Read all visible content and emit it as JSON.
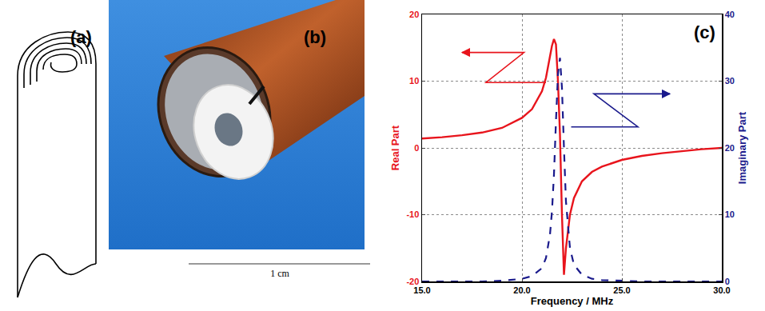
{
  "panels": {
    "a": {
      "label": "(a)"
    },
    "b": {
      "label": "(b)",
      "scale_bar": "1 cm"
    }
  },
  "chart_data": {
    "type": "line",
    "title": "(c)",
    "x_label": "Frequency / MHz",
    "y_label": "Real Part",
    "y2_label": "Imaginary Part",
    "x": [
      15,
      16,
      17,
      18,
      19,
      20,
      20.5,
      21,
      21.2,
      21.4,
      21.5,
      21.6,
      21.7,
      21.8,
      21.9,
      22.0,
      22.1,
      22.2,
      22.4,
      22.6,
      23,
      23.5,
      24,
      25,
      26,
      27,
      28,
      29,
      30
    ],
    "xlim": [
      15,
      30
    ],
    "xticks": [
      {
        "value": 15,
        "label": "15.0"
      },
      {
        "value": 20,
        "label": "20.0"
      },
      {
        "value": 25,
        "label": "25.0"
      },
      {
        "value": 30,
        "label": "30.0"
      }
    ],
    "ylim": [
      -20,
      20
    ],
    "yticks": [
      -20,
      -10,
      0,
      10,
      20
    ],
    "y2lim": [
      0,
      40
    ],
    "y2ticks": [
      0,
      10,
      20,
      30,
      40
    ],
    "grid": true,
    "series": [
      {
        "name": "Real Part",
        "color": "#e8141c",
        "line_style": "solid",
        "values": [
          1.4,
          1.6,
          1.9,
          2.3,
          3.0,
          4.5,
          5.8,
          8.5,
          10.5,
          13.5,
          15.3,
          16.3,
          15.5,
          10,
          2,
          -10,
          -19,
          -15,
          -10,
          -7.5,
          -5,
          -3.6,
          -2.8,
          -1.8,
          -1.2,
          -0.8,
          -0.5,
          -0.2,
          0
        ]
      },
      {
        "name": "Imaginary Part",
        "color": "#1a1a8c",
        "line_style": "dashed",
        "axis": "y2",
        "values": [
          0,
          0,
          0,
          0,
          0.1,
          0.4,
          0.8,
          2,
          3.5,
          7,
          10.5,
          16,
          24,
          31,
          33.5,
          29,
          20,
          12,
          5,
          2.5,
          1,
          0.4,
          0.2,
          0.1,
          0,
          0,
          0,
          0,
          0
        ]
      }
    ]
  }
}
